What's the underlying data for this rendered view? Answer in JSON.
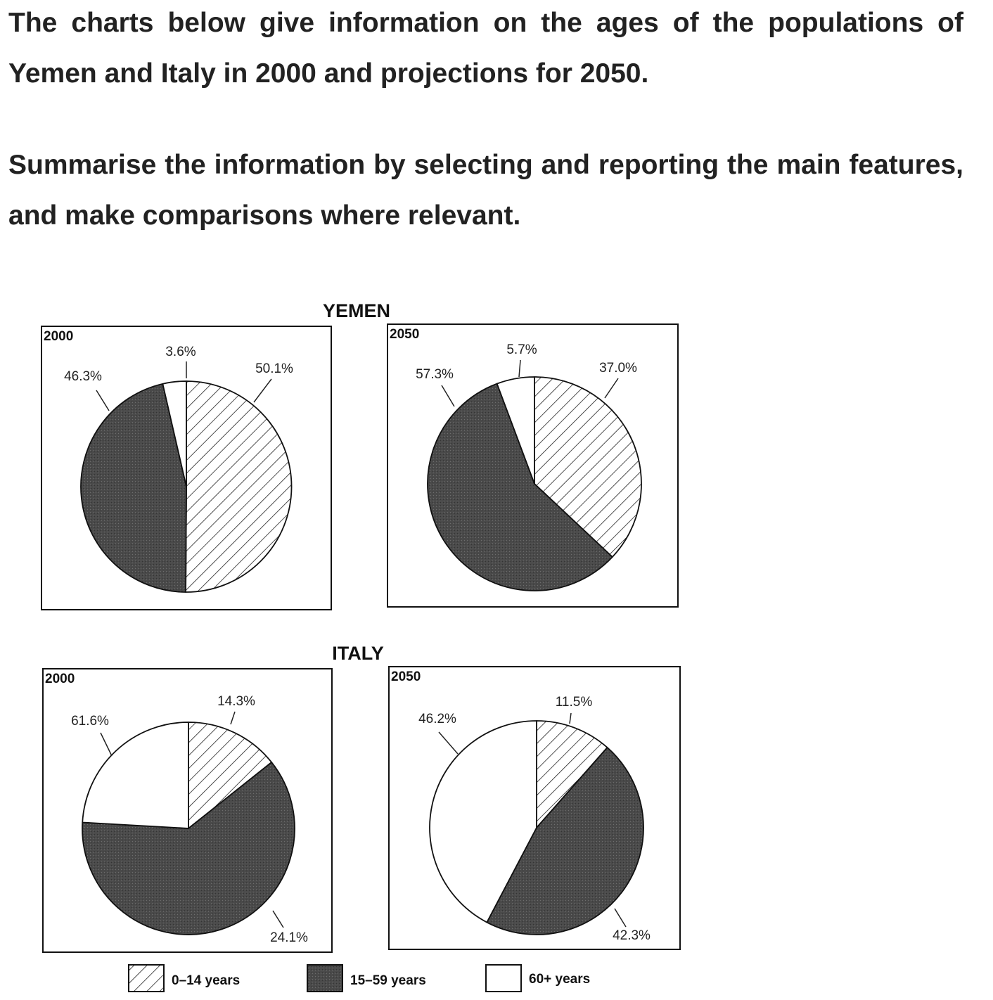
{
  "prompt": {
    "line1": "The charts below give information on the ages of the populations of Yemen and Italy in 2000 and projections for 2050.",
    "line2": "Summarise the information by selecting and reporting the main features, and make comparisons where relevant."
  },
  "colors": {
    "children": "#ffffff",
    "working": "#4a4a4a",
    "elderly": "#ffffff",
    "line": "#111111"
  },
  "chart_data": [
    {
      "type": "pie",
      "country": "YEMEN",
      "year": "2000",
      "categories": [
        "0–14 years",
        "15–59 years",
        "60+ years"
      ],
      "values": [
        50.1,
        46.3,
        3.6
      ],
      "labels": [
        "50.1%",
        "46.3%",
        "3.6%"
      ]
    },
    {
      "type": "pie",
      "country": "YEMEN",
      "year": "2050",
      "categories": [
        "0–14 years",
        "15–59 years",
        "60+ years"
      ],
      "values": [
        37.0,
        57.3,
        5.7
      ],
      "labels": [
        "37.0%",
        "57.3%",
        "5.7%"
      ]
    },
    {
      "type": "pie",
      "country": "ITALY",
      "year": "2000",
      "categories": [
        "0–14 years",
        "15–59 years",
        "60+ years"
      ],
      "values": [
        14.3,
        61.6,
        24.1
      ],
      "labels": [
        "14.3%",
        "61.6%",
        "24.1%"
      ]
    },
    {
      "type": "pie",
      "country": "ITALY",
      "year": "2050",
      "categories": [
        "0–14 years",
        "15–59 years",
        "60+ years"
      ],
      "values": [
        11.5,
        46.2,
        42.3
      ],
      "labels": [
        "11.5%",
        "46.2%",
        "42.3%"
      ]
    }
  ],
  "countries": {
    "yemen": "YEMEN",
    "italy": "ITALY"
  },
  "legend": {
    "children": "0–14 years",
    "working": "15–59 years",
    "elderly": "60+ years"
  }
}
